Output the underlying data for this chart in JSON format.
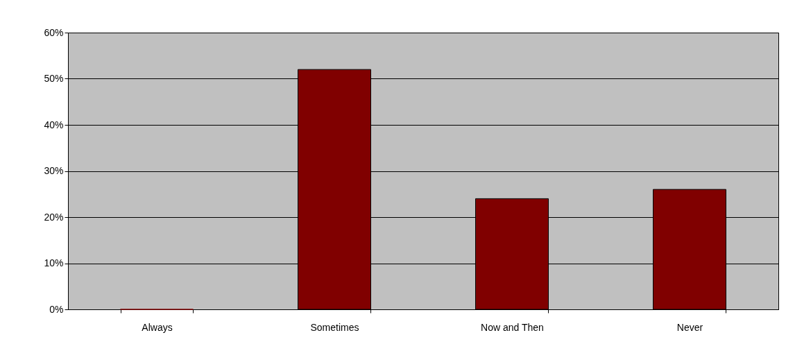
{
  "chart_data": {
    "type": "bar",
    "categories": [
      "Always",
      "Sometimes",
      "Now and Then",
      "Never"
    ],
    "values": [
      0,
      52,
      24,
      26
    ],
    "color": "#800000",
    "ylim": [
      0,
      60
    ],
    "yticks": [
      {
        "value": 0,
        "label": "0%"
      },
      {
        "value": 10,
        "label": "10%"
      },
      {
        "value": 20,
        "label": "20%"
      },
      {
        "value": 30,
        "label": "30%"
      },
      {
        "value": 40,
        "label": "40%"
      },
      {
        "value": 50,
        "label": "50%"
      },
      {
        "value": 60,
        "label": "60%"
      }
    ],
    "grid": "y",
    "legend": false
  }
}
